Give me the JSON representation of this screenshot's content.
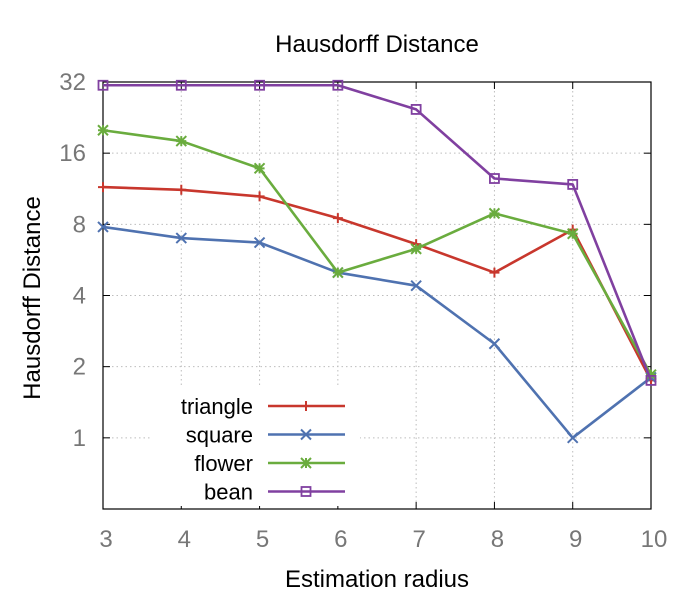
{
  "chart_data": {
    "type": "line",
    "title": "Hausdorff Distance",
    "xlabel": "Estimation radius",
    "ylabel": "Hausdorff Distance",
    "x": [
      3,
      4,
      5,
      6,
      7,
      8,
      9,
      10
    ],
    "xlim": [
      3,
      10
    ],
    "ylim": [
      0.5,
      32
    ],
    "yscale": "log2",
    "xticks": [
      "3",
      "4",
      "5",
      "6",
      "7",
      "8",
      "9",
      "10"
    ],
    "yticks": [
      {
        "value": 1,
        "label": "1"
      },
      {
        "value": 2,
        "label": "2"
      },
      {
        "value": 4,
        "label": "4"
      },
      {
        "value": 8,
        "label": "8"
      },
      {
        "value": 16,
        "label": "16"
      },
      {
        "value": 32,
        "label": "32"
      }
    ],
    "grid": true,
    "legend": "bottom-left",
    "series": [
      {
        "name": "triangle",
        "color": "#c8372d",
        "marker": "plus",
        "values": [
          11.5,
          11.2,
          10.5,
          8.5,
          6.6,
          5.0,
          7.6,
          1.75
        ]
      },
      {
        "name": "square",
        "color": "#4f72b0",
        "marker": "cross",
        "values": [
          7.8,
          7.0,
          6.7,
          5.0,
          4.4,
          2.5,
          1.0,
          1.8
        ]
      },
      {
        "name": "flower",
        "color": "#6aac3e",
        "marker": "star",
        "values": [
          20.0,
          18.0,
          13.8,
          5.0,
          6.3,
          8.9,
          7.3,
          1.85
        ]
      },
      {
        "name": "bean",
        "color": "#8040a0",
        "marker": "square",
        "values": [
          31.0,
          31.0,
          31.0,
          31.0,
          24.5,
          12.5,
          11.8,
          1.75
        ]
      }
    ]
  }
}
